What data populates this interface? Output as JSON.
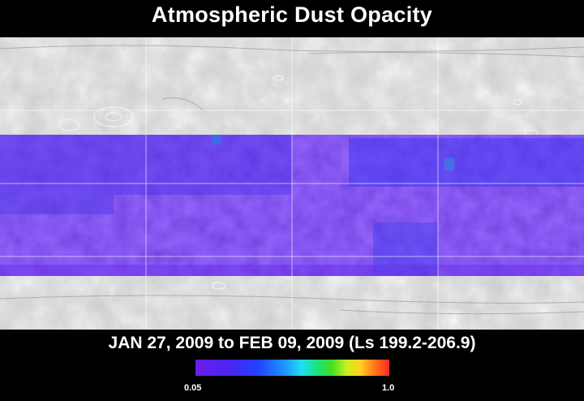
{
  "title": "Atmospheric Dust Opacity",
  "date_range": "JAN 27, 2009 to FEB 09, 2009 (Ls 199.2-206.9)",
  "colorbar": {
    "min_label": "0.05",
    "max_label": "1.0",
    "colors": [
      "#6a1fe6",
      "#2340ff",
      "#1fe0ee",
      "#3fe022",
      "#ffd11f",
      "#ff2a1f"
    ]
  },
  "map": {
    "basemap": "shaded relief",
    "overlay_color": "#5a2ce8",
    "grid_color": "#ffffff"
  }
}
